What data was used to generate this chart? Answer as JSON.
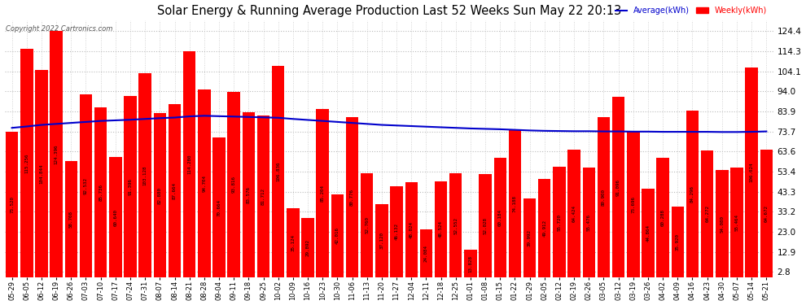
{
  "title": "Solar Energy & Running Average Production Last 52 Weeks Sun May 22 20:13",
  "copyright": "Copyright 2022 Cartronics.com",
  "legend_avg": "Average(kWh)",
  "legend_weekly": "Weekly(kWh)",
  "ylabel_right_ticks": [
    2.8,
    12.9,
    23.0,
    33.2,
    43.3,
    53.4,
    63.6,
    73.7,
    83.9,
    94.0,
    104.1,
    114.3,
    124.4
  ],
  "bar_color": "#ff0000",
  "avg_line_color": "#0000cc",
  "background_color": "#ffffff",
  "grid_color": "#bbbbbb",
  "title_color": "#000000",
  "categories": [
    "05-29",
    "06-05",
    "06-12",
    "06-19",
    "06-26",
    "07-03",
    "07-10",
    "07-17",
    "07-24",
    "07-31",
    "08-07",
    "08-14",
    "08-21",
    "08-28",
    "09-04",
    "09-11",
    "09-18",
    "09-25",
    "10-02",
    "10-09",
    "10-16",
    "10-23",
    "10-30",
    "11-06",
    "11-13",
    "11-20",
    "11-27",
    "12-04",
    "12-11",
    "12-18",
    "12-25",
    "01-01",
    "01-08",
    "01-15",
    "01-22",
    "01-29",
    "02-05",
    "02-12",
    "02-19",
    "02-26",
    "03-05",
    "03-12",
    "03-19",
    "03-26",
    "04-02",
    "04-09",
    "04-16",
    "04-23",
    "04-30",
    "05-07",
    "05-14",
    "05-21"
  ],
  "weekly_values": [
    73.52,
    115.256,
    104.844,
    124.396,
    58.708,
    92.532,
    85.736,
    60.64,
    91.396,
    103.128,
    82.88,
    87.664,
    114.28,
    94.704,
    70.664,
    93.816,
    83.576,
    81.712,
    106.836,
    35.124,
    29.892,
    85.204,
    42.016,
    80.776,
    52.76,
    37.12,
    46.132,
    48.024,
    24.084,
    48.524,
    52.552,
    13.828,
    52.028,
    60.184,
    74.188,
    39.992,
    49.912,
    55.72,
    64.424,
    55.476,
    80.9,
    91.096,
    73.696,
    44.864,
    60.288,
    35.92,
    84.296,
    64.272,
    54.08,
    55.464,
    106.024,
    64.672
  ],
  "avg_values": [
    75.5,
    76.2,
    77.0,
    77.5,
    78.0,
    78.5,
    79.0,
    79.3,
    79.6,
    80.0,
    80.4,
    80.7,
    81.3,
    81.6,
    81.4,
    81.2,
    81.0,
    80.8,
    80.6,
    80.0,
    79.5,
    79.0,
    78.5,
    78.0,
    77.5,
    77.0,
    76.7,
    76.4,
    76.1,
    75.8,
    75.5,
    75.2,
    75.0,
    74.8,
    74.5,
    74.2,
    74.0,
    73.9,
    73.8,
    73.8,
    73.7,
    73.7,
    73.6,
    73.6,
    73.5,
    73.5,
    73.5,
    73.5,
    73.4,
    73.4,
    73.5,
    73.7
  ]
}
